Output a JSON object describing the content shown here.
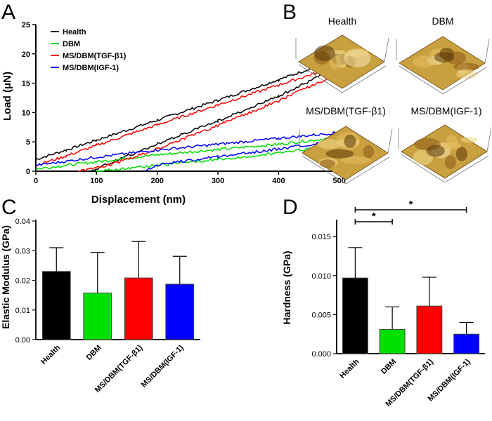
{
  "panel_letters": {
    "a": "A",
    "b": "B",
    "c": "C",
    "d": "D"
  },
  "colors": {
    "health": "#000000",
    "dbm": "#00e000",
    "tgf": "#ff0000",
    "igf": "#0000ff",
    "surface": "#c9a040"
  },
  "surface_labels": [
    "Health",
    "DBM",
    "MS/DBM(TGF-β1)",
    "MS/DBM(IGF-1)"
  ],
  "chart_data": [
    {
      "type": "line",
      "xlabel": "Displacement (nm)",
      "ylabel": "Load (μN)",
      "xlim": [
        0,
        520
      ],
      "ylim": [
        0,
        25
      ],
      "xticks": [
        0,
        100,
        200,
        300,
        400,
        500
      ],
      "yticks": [
        0,
        5,
        10,
        15,
        20,
        25
      ],
      "legend_position": "top-left",
      "series": [
        {
          "name": "Health",
          "color": "#000000",
          "loading": [
            [
              0,
              2
            ],
            [
              50,
              3.6
            ],
            [
              100,
              5.3
            ],
            [
              200,
              8.7
            ],
            [
              300,
              12.1
            ],
            [
              400,
              15.6
            ],
            [
              500,
              19.2
            ]
          ],
          "unloading": [
            [
              500,
              18.5
            ],
            [
              480,
              17
            ],
            [
              450,
              15.3
            ],
            [
              400,
              12.8
            ],
            [
              300,
              8.6
            ],
            [
              200,
              4.6
            ],
            [
              120,
              1.3
            ],
            [
              90,
              0
            ]
          ]
        },
        {
          "name": "DBM",
          "color": "#00e000",
          "loading": [
            [
              0,
              0.4
            ],
            [
              100,
              1.6
            ],
            [
              200,
              2.8
            ],
            [
              300,
              3.7
            ],
            [
              400,
              4.6
            ],
            [
              500,
              5.8
            ]
          ],
          "unloading": [
            [
              500,
              4.4
            ],
            [
              400,
              3.1
            ],
            [
              300,
              2
            ],
            [
              200,
              1
            ],
            [
              120,
              0.2
            ],
            [
              100,
              0
            ]
          ]
        },
        {
          "name": "MS/DBM(TGF-β1)",
          "color": "#ff0000",
          "loading": [
            [
              0,
              1
            ],
            [
              50,
              2.6
            ],
            [
              100,
              4.4
            ],
            [
              200,
              7.9
            ],
            [
              300,
              11.3
            ],
            [
              400,
              14.7
            ],
            [
              500,
              18
            ]
          ],
          "unloading": [
            [
              500,
              16.5
            ],
            [
              450,
              14.4
            ],
            [
              400,
              12
            ],
            [
              300,
              7.8
            ],
            [
              200,
              3.8
            ],
            [
              120,
              1
            ],
            [
              70,
              0
            ]
          ]
        },
        {
          "name": "MS/DBM(IGF-1)",
          "color": "#0000ff",
          "loading": [
            [
              0,
              1
            ],
            [
              100,
              2.4
            ],
            [
              200,
              3.6
            ],
            [
              300,
              4.6
            ],
            [
              400,
              5.6
            ],
            [
              500,
              6.6
            ]
          ],
          "unloading": [
            [
              500,
              5.2
            ],
            [
              400,
              3.8
            ],
            [
              300,
              2.5
            ],
            [
              200,
              1.1
            ],
            [
              180,
              0
            ]
          ]
        }
      ]
    },
    {
      "type": "bar",
      "ylabel": "Elastic Modulus (GPa)",
      "categories": [
        "Health",
        "DBM",
        "MS/DBM(TGF-β1)",
        "MS/DBM(IGF-1)"
      ],
      "values": [
        0.023,
        0.0157,
        0.0208,
        0.0187
      ],
      "errors": [
        0.008,
        0.0137,
        0.0123,
        0.0094
      ],
      "colors": [
        "#000000",
        "#00e000",
        "#ff0000",
        "#0000ff"
      ],
      "ylim": [
        0,
        0.04
      ],
      "yticks": [
        "0.00",
        "0.01",
        "0.02",
        "0.03",
        "0.04"
      ]
    },
    {
      "type": "bar",
      "ylabel": "Hardness (GPa)",
      "categories": [
        "Health",
        "DBM",
        "MS/DBM(TGF-β1)",
        "MS/DBM(IGF-1)"
      ],
      "values": [
        0.0097,
        0.0031,
        0.0061,
        0.0025
      ],
      "errors": [
        0.0039,
        0.0029,
        0.0037,
        0.0015
      ],
      "colors": [
        "#000000",
        "#00e000",
        "#ff0000",
        "#0000ff"
      ],
      "ylim": [
        0,
        0.017
      ],
      "yticks": [
        "0.000",
        "0.005",
        "0.010",
        "0.015"
      ],
      "significance": [
        {
          "from": "Health",
          "to": "DBM",
          "label": "*"
        },
        {
          "from": "Health",
          "to": "MS/DBM(IGF-1)",
          "label": "*"
        }
      ]
    }
  ]
}
